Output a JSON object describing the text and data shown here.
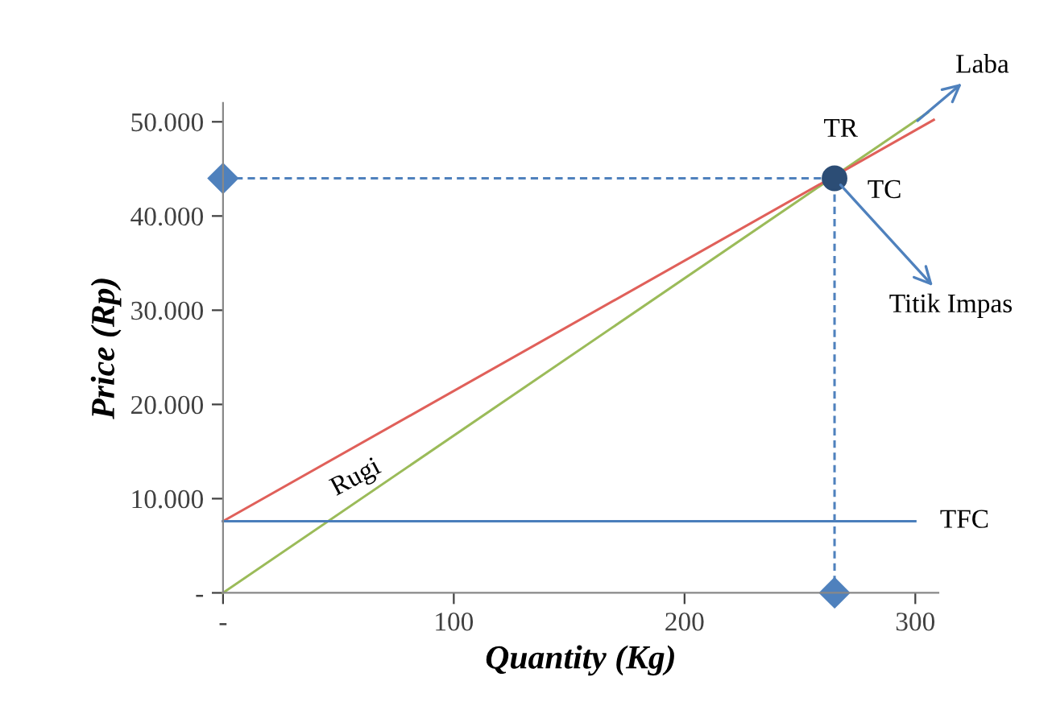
{
  "chart_data": {
    "type": "line",
    "xlabel": "Quantity (Kg)",
    "ylabel": "Price (Rp)",
    "xlim": [
      0,
      310
    ],
    "ylim": [
      0,
      52000
    ],
    "xticks": [
      {
        "value": 0,
        "label": "-"
      },
      100,
      200,
      300
    ],
    "yticks": [
      {
        "value": 0,
        "label": "-"
      },
      {
        "value": 10000,
        "label": "10.000"
      },
      {
        "value": 20000,
        "label": "20.000"
      },
      {
        "value": 30000,
        "label": "30.000"
      },
      {
        "value": 40000,
        "label": "40.000"
      },
      {
        "value": 50000,
        "label": "50.000"
      }
    ],
    "series": [
      {
        "type": "line",
        "name": "TR",
        "color": "#9bbb59",
        "x": [
          0,
          305.5
        ],
        "values": [
          0,
          51000
        ]
      },
      {
        "type": "line",
        "name": "TC",
        "color": "#e0605a",
        "x": [
          0,
          308
        ],
        "values": [
          7600,
          50200
        ]
      },
      {
        "type": "line",
        "name": "TFC",
        "color": "#4a7ebb",
        "x": [
          0,
          300
        ],
        "values": [
          7600,
          7600
        ]
      },
      {
        "type": "line",
        "color": "#4f81bd",
        "line_style": "dashed",
        "marker": "diamond",
        "x": [
          0,
          265,
          265
        ],
        "values": [
          44000,
          44000,
          0
        ]
      },
      {
        "type": "scatter",
        "color": "#2c4d75",
        "marker": "circle",
        "x": [
          265
        ],
        "values": [
          44000
        ]
      }
    ],
    "annotations": [
      "Rugi",
      {
        "text": "Laba",
        "x": 298,
        "y": 49500
      },
      {
        "text": "Titik Impas",
        "x": 265,
        "y": 44000
      }
    ]
  }
}
